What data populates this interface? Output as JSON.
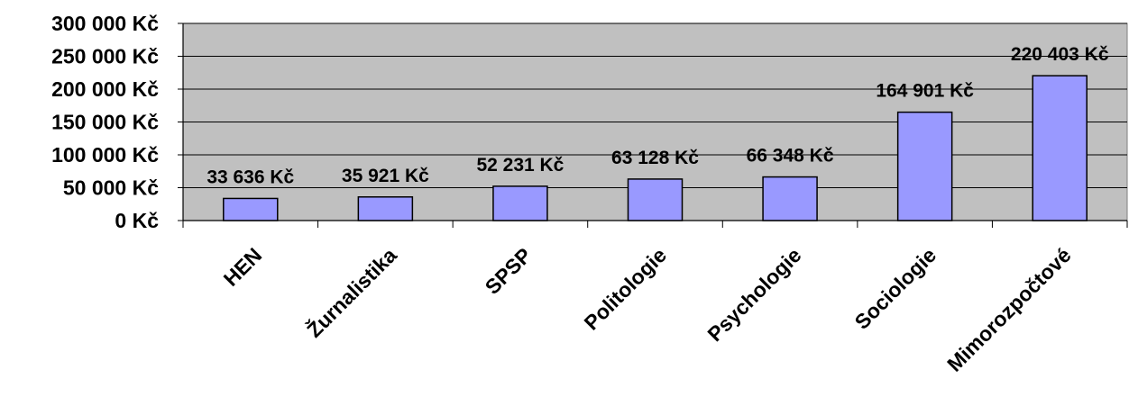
{
  "chart_data": {
    "type": "bar",
    "categories": [
      "HEN",
      "Žurnalistika",
      "SPSP",
      "Politologie",
      "Psychologie",
      "Sociologie",
      "Mimorozpočtové"
    ],
    "values": [
      33636,
      35921,
      52231,
      63128,
      66348,
      164901,
      220403
    ],
    "value_labels": [
      "33 636 Kč",
      "35 921 Kč",
      "52 231 Kč",
      "63 128 Kč",
      "66 348 Kč",
      "164 901 Kč",
      "220 403 Kč"
    ],
    "y_ticks": [
      0,
      50000,
      100000,
      150000,
      200000,
      250000,
      300000
    ],
    "y_tick_labels": [
      "0 Kč",
      "50 000 Kč",
      "100 000 Kč",
      "150 000 Kč",
      "200 000 Kč",
      "250 000 Kč",
      "300 000 Kč"
    ],
    "ylim": [
      0,
      300000
    ],
    "grid": true,
    "legend": "none",
    "title": "",
    "xlabel": "",
    "ylabel": "",
    "colors": {
      "plot_background": "#C0C0C0",
      "bar_fill": "#9999FF",
      "bar_stroke": "#000000",
      "gridline": "#000000"
    }
  }
}
